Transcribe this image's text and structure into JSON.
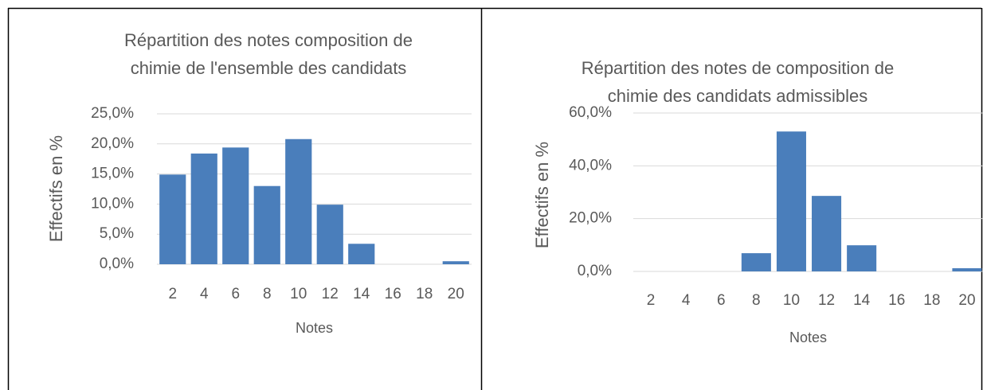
{
  "chart_data": [
    {
      "type": "bar",
      "title": [
        "Répartition des notes  composition de",
        "chimie de l'ensemble des candidats"
      ],
      "x_label": "Notes",
      "y_label": "Effectifs en %",
      "categories": [
        "2",
        "4",
        "6",
        "8",
        "10",
        "12",
        "14",
        "16",
        "18",
        "20"
      ],
      "values": [
        14.9,
        18.4,
        19.4,
        13.0,
        20.8,
        9.9,
        3.4,
        0,
        0,
        0.5
      ],
      "color": "#4a7ebb",
      "ylim": [
        0,
        25
      ],
      "yticks": [
        {
          "value": 0,
          "label": "0,0%"
        },
        {
          "value": 5,
          "label": "5,0%"
        },
        {
          "value": 10,
          "label": "10,0%"
        },
        {
          "value": 15,
          "label": "15,0%"
        },
        {
          "value": 20,
          "label": "20,0%"
        },
        {
          "value": 25,
          "label": "25,0%"
        }
      ],
      "grid": true
    },
    {
      "type": "bar",
      "title": [
        "Répartition des notes de composition de",
        "chimie des candidats admissibles"
      ],
      "x_label": "Notes",
      "y_label": "Effectifs en %",
      "categories": [
        "2",
        "4",
        "6",
        "8",
        "10",
        "12",
        "14",
        "16",
        "18",
        "20"
      ],
      "values": [
        0,
        0,
        0,
        6.9,
        53.0,
        28.6,
        9.9,
        0,
        0,
        1.2
      ],
      "color": "#4a7ebb",
      "ylim": [
        0,
        60
      ],
      "yticks": [
        {
          "value": 0,
          "label": "0,0%"
        },
        {
          "value": 20,
          "label": "20,0%"
        },
        {
          "value": 40,
          "label": "40,0%"
        },
        {
          "value": 60,
          "label": "60,0%"
        }
      ],
      "grid": true
    }
  ]
}
